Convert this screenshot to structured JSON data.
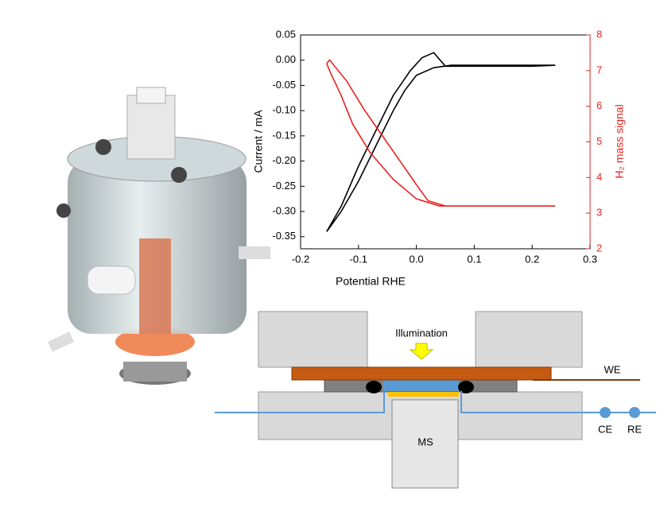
{
  "chart_data": {
    "type": "line",
    "xlabel": "Potential RHE",
    "ylabel": "Current / mA",
    "y2label": "H₂ mass signal",
    "xlim": [
      -0.2,
      0.3
    ],
    "xticks": [
      -0.2,
      -0.1,
      {
        "value": 0,
        "label": "0.0"
      },
      0.1,
      0.2,
      0.3
    ],
    "ylim": [
      -0.374,
      0.05
    ],
    "yticks": [
      0.05,
      {
        "value": 0,
        "label": "0.00"
      },
      -0.05,
      {
        "value": -0.1,
        "label": "-0.10"
      },
      -0.15,
      {
        "value": -0.2,
        "label": "-0.20"
      },
      -0.25,
      {
        "value": -0.3,
        "label": "-0.30"
      },
      -0.35
    ],
    "y2lim": [
      2,
      8
    ],
    "y2ticks": [
      2,
      3,
      4,
      5,
      6,
      7,
      8
    ],
    "series": [
      {
        "color": "#000000",
        "x": [
          -0.155,
          -0.13,
          -0.1,
          -0.07,
          -0.04,
          -0.02,
          0,
          0.03,
          0.06,
          0.1,
          0.15,
          0.2,
          0.24,
          0.2,
          0.1,
          0.05,
          0.03,
          0.01,
          -0.01,
          -0.04,
          -0.07,
          -0.1,
          -0.13,
          -0.155
        ],
        "values": [
          -0.34,
          -0.3,
          -0.24,
          -0.17,
          -0.1,
          -0.06,
          -0.03,
          -0.015,
          -0.01,
          -0.01,
          -0.01,
          -0.01,
          -0.01,
          -0.012,
          -0.012,
          -0.012,
          0.015,
          0.005,
          -0.02,
          -0.07,
          -0.14,
          -0.21,
          -0.29,
          -0.34
        ]
      },
      {
        "color": "#e8231f",
        "axis": "y2",
        "x": [
          -0.155,
          -0.15,
          -0.12,
          -0.09,
          -0.06,
          -0.03,
          0,
          0.02,
          0.05,
          0.1,
          0.15,
          0.24,
          0.1,
          0.04,
          0,
          -0.04,
          -0.08,
          -0.11,
          -0.13,
          -0.15,
          -0.155
        ],
        "values": [
          7.2,
          7.3,
          6.7,
          5.9,
          5.2,
          4.5,
          3.8,
          3.35,
          3.2,
          3.2,
          3.2,
          3.2,
          3.2,
          3.2,
          3.4,
          3.95,
          4.7,
          5.5,
          6.3,
          7.0,
          7.2
        ]
      }
    ]
  },
  "diagram": {
    "illumination": "Illumination",
    "we": "WE",
    "ce": "CE",
    "re": "RE",
    "ms": "MS"
  }
}
